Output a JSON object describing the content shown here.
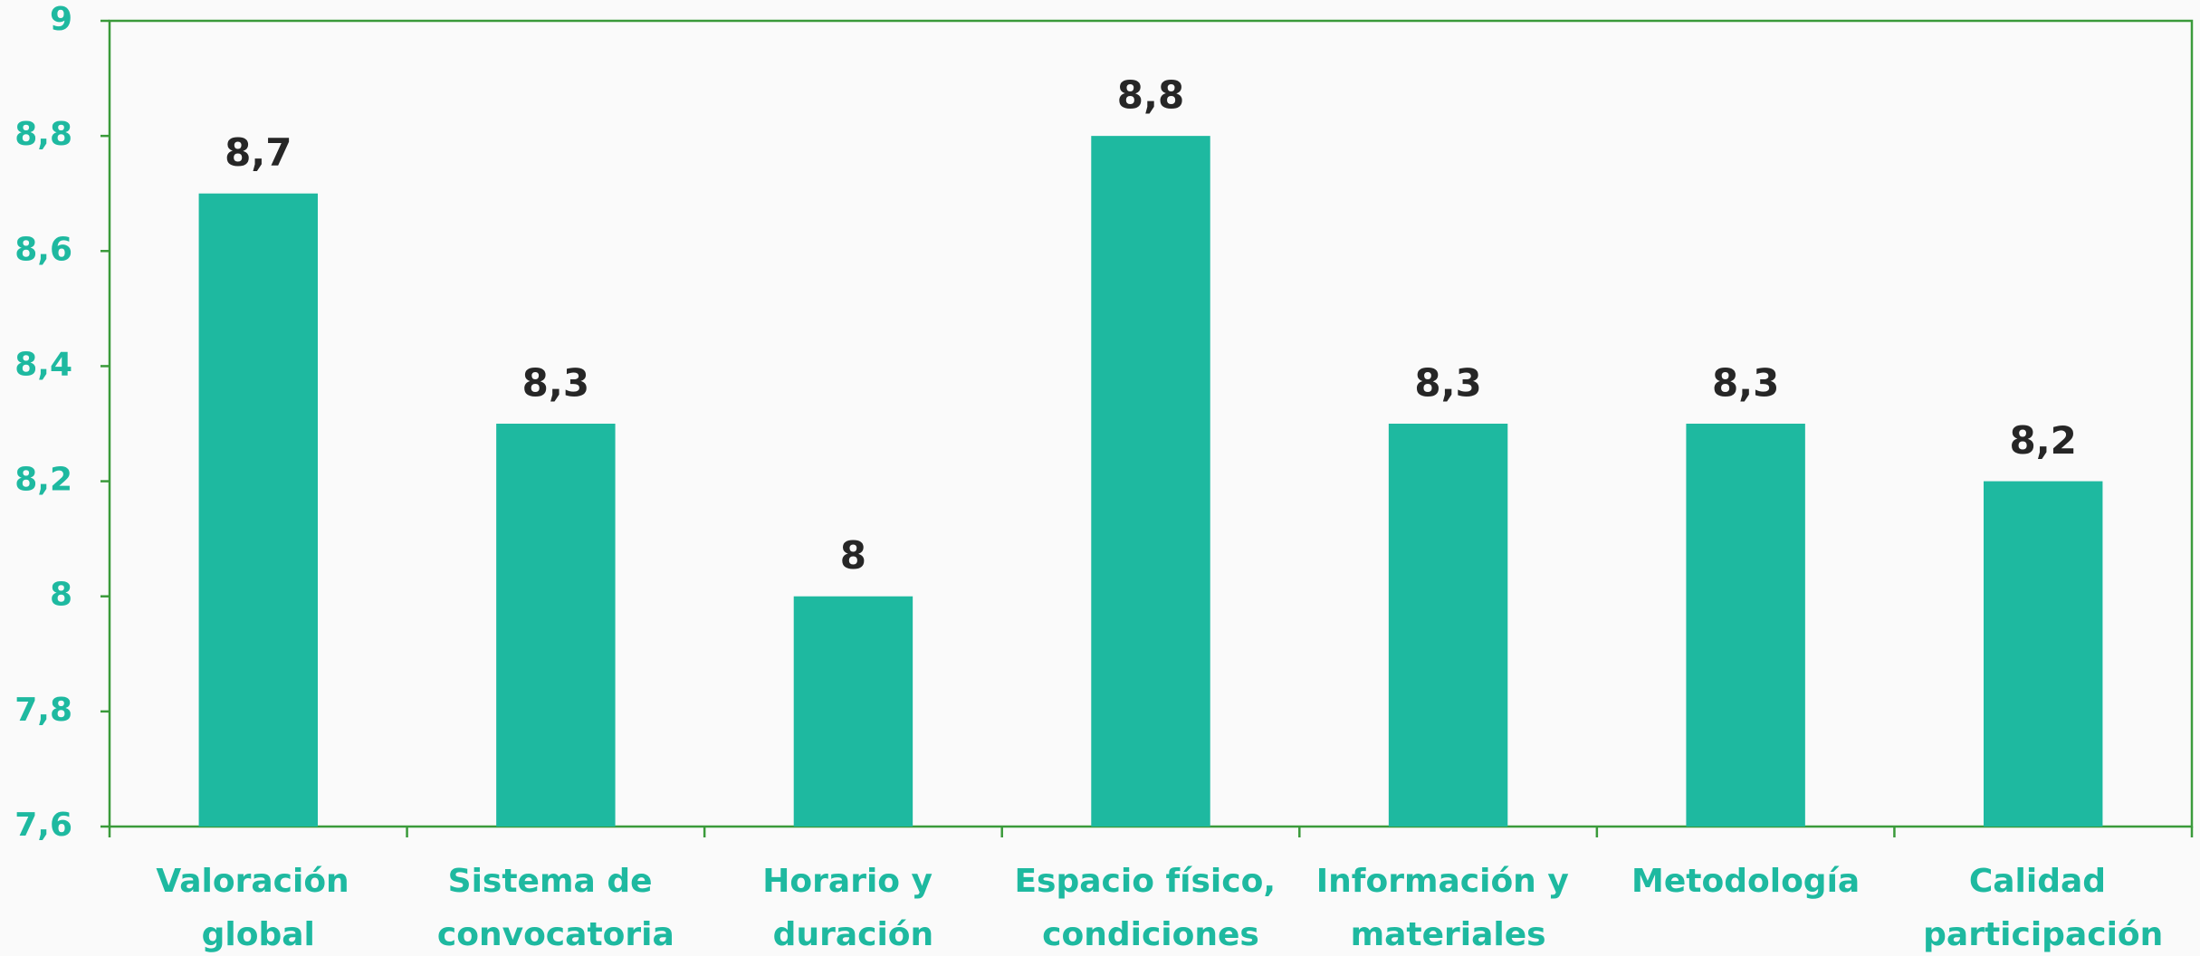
{
  "chart_data": {
    "type": "bar",
    "categories": [
      "Valoración global",
      "Sistema de convocatoria",
      "Horario y duración",
      "Espacio físico, condiciones",
      "Información y materiales",
      "Metodología",
      "Calidad participación"
    ],
    "values": [
      8.7,
      8.3,
      8,
      8.8,
      8.3,
      8.3,
      8.2
    ],
    "value_labels": [
      "8,7",
      "8,3",
      "8",
      "8,8",
      "8,3",
      "8,3",
      "8,2"
    ],
    "color": "#1eb9a0",
    "ylim": [
      7.6,
      9
    ],
    "yticks": [
      {
        "value": 7.6,
        "label": "7,6"
      },
      {
        "value": 7.8,
        "label": "7,8"
      },
      8,
      {
        "value": 8.2,
        "label": "8,2"
      },
      {
        "value": 8.4,
        "label": "8,4"
      },
      {
        "value": 8.6,
        "label": "8,6"
      },
      {
        "value": 8.8,
        "label": "8,8"
      },
      9
    ],
    "grid": false
  }
}
